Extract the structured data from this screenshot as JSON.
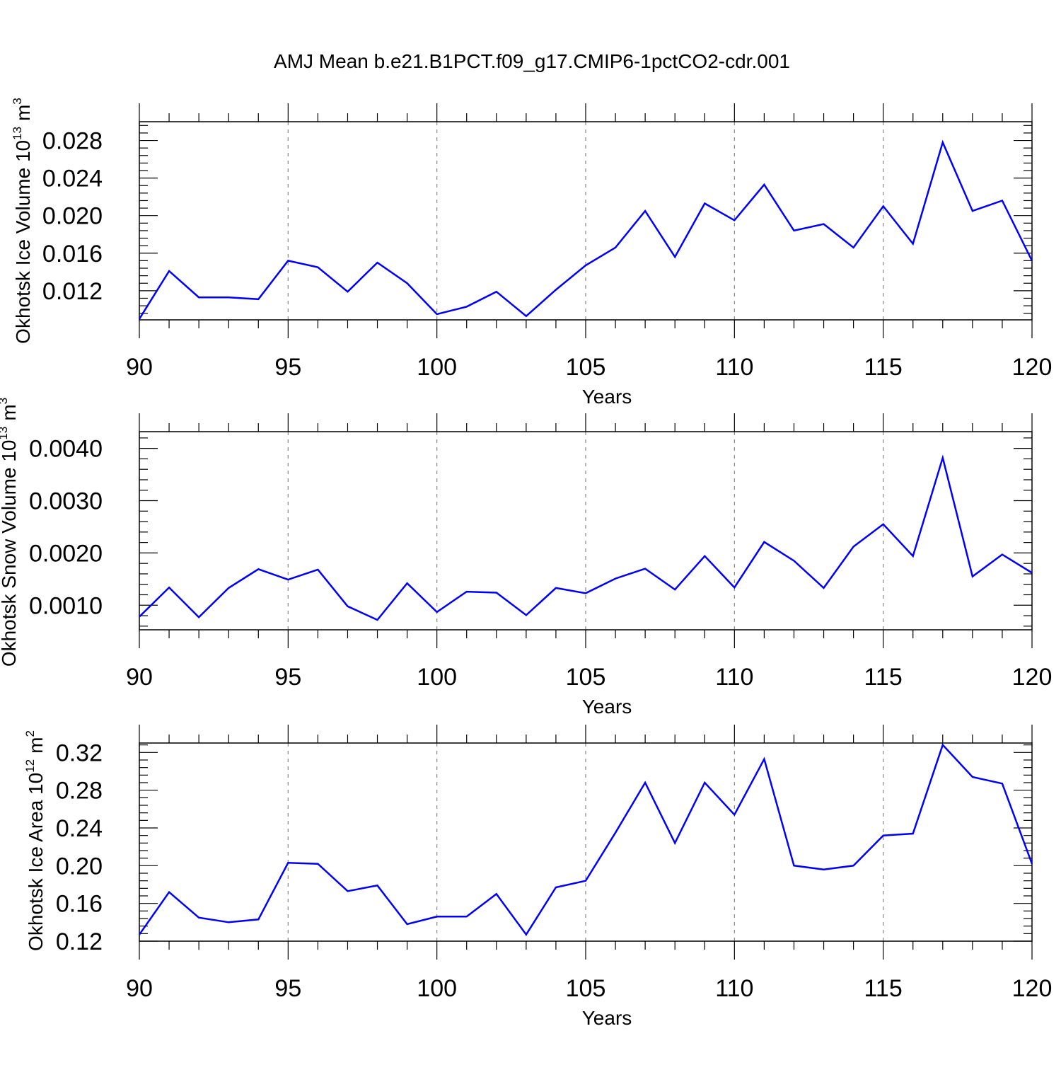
{
  "title": "AMJ Mean b.e21.B1PCT.f09_g17.CMIP6-1pctCO2-cdr.001",
  "colors": {
    "line": "#0000ff",
    "axis": "#000000",
    "grid": "#888888"
  },
  "chart_data": [
    {
      "type": "line",
      "ylabel": "Okhotsk Ice Volume",
      "yunit_base": "10",
      "yunit_exp": "13",
      "yunit_unit": "m",
      "yunit_unit_exp": "3",
      "xlabel": "Years",
      "xlim": [
        90,
        120
      ],
      "ylim": [
        0.0089,
        0.03
      ],
      "yticks": [
        0.012,
        0.016,
        0.02,
        0.024,
        0.028
      ],
      "ytick_labels": [
        "0.012",
        "0.016",
        "0.020",
        "0.024",
        "0.028"
      ],
      "xticks": [
        90,
        95,
        100,
        105,
        110,
        115,
        120
      ],
      "xtick_labels": [
        "90",
        "95",
        "100",
        "105",
        "110",
        "115",
        "120"
      ],
      "x": [
        90,
        91,
        92,
        93,
        94,
        95,
        96,
        97,
        98,
        99,
        100,
        101,
        102,
        103,
        104,
        105,
        106,
        107,
        108,
        109,
        110,
        111,
        112,
        113,
        114,
        115,
        116,
        117,
        118,
        119,
        120
      ],
      "values": [
        0.009,
        0.0141,
        0.0113,
        0.0113,
        0.0111,
        0.0152,
        0.0145,
        0.0119,
        0.015,
        0.0128,
        0.0095,
        0.0103,
        0.0119,
        0.0093,
        0.0121,
        0.0147,
        0.0166,
        0.0205,
        0.0156,
        0.0213,
        0.0195,
        0.0233,
        0.0184,
        0.0191,
        0.0166,
        0.021,
        0.017,
        0.0278,
        0.0205,
        0.0216,
        0.0152
      ]
    },
    {
      "type": "line",
      "ylabel": "Okhotsk Snow Volume",
      "yunit_base": "10",
      "yunit_exp": "13",
      "yunit_unit": "m",
      "yunit_unit_exp": "3",
      "xlabel": "Years",
      "xlim": [
        90,
        120
      ],
      "ylim": [
        0.00053,
        0.00432
      ],
      "yticks": [
        0.001,
        0.002,
        0.003,
        0.004
      ],
      "ytick_labels": [
        "0.0010",
        "0.0020",
        "0.0030",
        "0.0040"
      ],
      "xticks": [
        90,
        95,
        100,
        105,
        110,
        115,
        120
      ],
      "xtick_labels": [
        "90",
        "95",
        "100",
        "105",
        "110",
        "115",
        "120"
      ],
      "x": [
        90,
        91,
        92,
        93,
        94,
        95,
        96,
        97,
        98,
        99,
        100,
        101,
        102,
        103,
        104,
        105,
        106,
        107,
        108,
        109,
        110,
        111,
        112,
        113,
        114,
        115,
        116,
        117,
        118,
        119,
        120
      ],
      "values": [
        0.00078,
        0.00134,
        0.00077,
        0.00133,
        0.00169,
        0.00149,
        0.00168,
        0.00098,
        0.00072,
        0.00142,
        0.00087,
        0.00126,
        0.00124,
        0.00081,
        0.00133,
        0.00123,
        0.00151,
        0.0017,
        0.0013,
        0.00194,
        0.00134,
        0.00221,
        0.00185,
        0.00133,
        0.00212,
        0.00255,
        0.00194,
        0.00382,
        0.00155,
        0.00197,
        0.00162
      ]
    },
    {
      "type": "line",
      "ylabel": "Okhotsk Ice Area",
      "yunit_base": "10",
      "yunit_exp": "12",
      "yunit_unit": "m",
      "yunit_unit_exp": "2",
      "xlabel": "Years",
      "xlim": [
        90,
        120
      ],
      "ylim": [
        0.12,
        0.33
      ],
      "yticks": [
        0.12,
        0.16,
        0.2,
        0.24,
        0.28,
        0.32
      ],
      "ytick_labels": [
        "0.12",
        "0.16",
        "0.20",
        "0.24",
        "0.28",
        "0.32"
      ],
      "xticks": [
        90,
        95,
        100,
        105,
        110,
        115,
        120
      ],
      "xtick_labels": [
        "90",
        "95",
        "100",
        "105",
        "110",
        "115",
        "120"
      ],
      "x": [
        90,
        91,
        92,
        93,
        94,
        95,
        96,
        97,
        98,
        99,
        100,
        101,
        102,
        103,
        104,
        105,
        106,
        107,
        108,
        109,
        110,
        111,
        112,
        113,
        114,
        115,
        116,
        117,
        118,
        119,
        120
      ],
      "values": [
        0.127,
        0.172,
        0.145,
        0.14,
        0.143,
        0.203,
        0.202,
        0.173,
        0.179,
        0.138,
        0.146,
        0.146,
        0.17,
        0.127,
        0.177,
        0.184,
        0.235,
        0.288,
        0.224,
        0.288,
        0.254,
        0.313,
        0.2,
        0.196,
        0.2,
        0.232,
        0.234,
        0.328,
        0.294,
        0.287,
        0.202
      ]
    }
  ]
}
